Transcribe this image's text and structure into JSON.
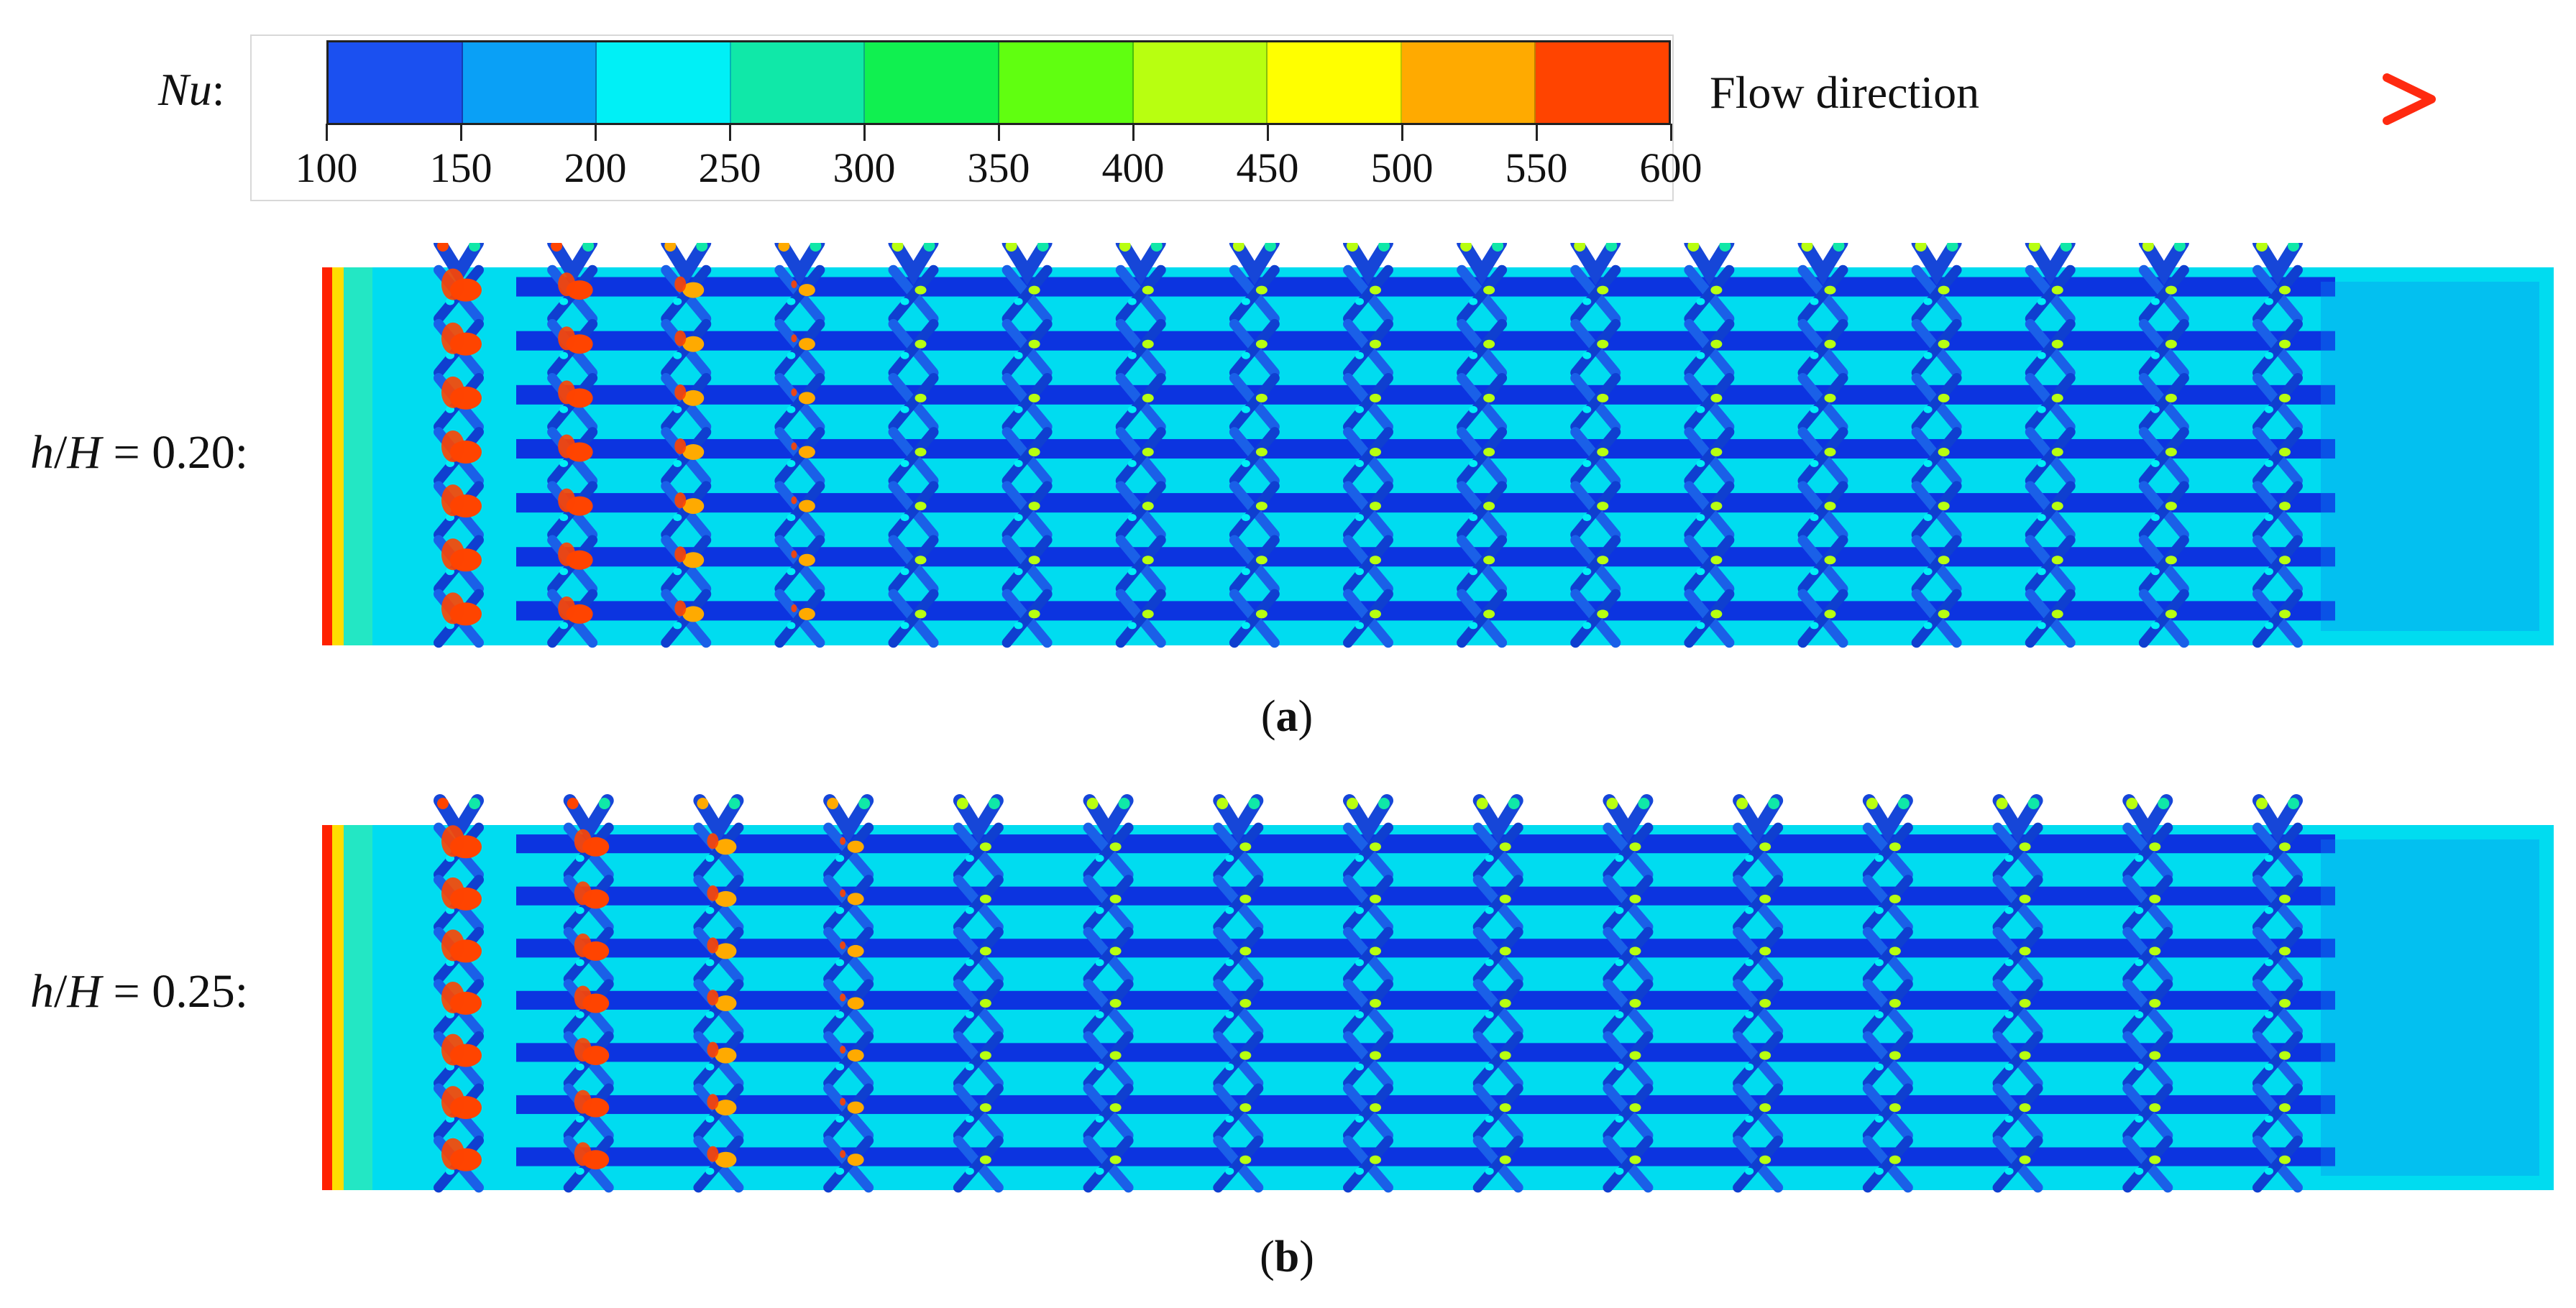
{
  "legend": {
    "variable": "Nu",
    "colon": ":",
    "colors": [
      "#1b50f0",
      "#0aa0f6",
      "#00f0f6",
      "#10e8a8",
      "#10f050",
      "#60ff10",
      "#b8ff10",
      "#ffff00",
      "#ffaa00",
      "#ff4400"
    ],
    "ticks": [
      "100",
      "150",
      "200",
      "250",
      "300",
      "350",
      "400",
      "450",
      "500",
      "550",
      "600"
    ],
    "flow_label": "Flow direction",
    "arrow_colors": [
      "#0fa050",
      "#ff2a10"
    ]
  },
  "panels": [
    {
      "id": "a",
      "var_h": "h",
      "var_H": "H",
      "value": " = 0.20:",
      "caption": "a",
      "rows": 7,
      "columns": 17,
      "field": {
        "background": "#00dcf0",
        "channel": "#0c34e0",
        "inlet": "#ff2200"
      }
    },
    {
      "id": "b",
      "var_h": "h",
      "var_H": "H",
      "value": " = 0.25:",
      "caption": "b",
      "rows": 7,
      "columns": 15,
      "field": {
        "background": "#00dcf0",
        "channel": "#0c34e0",
        "inlet": "#ff2200"
      }
    }
  ]
}
